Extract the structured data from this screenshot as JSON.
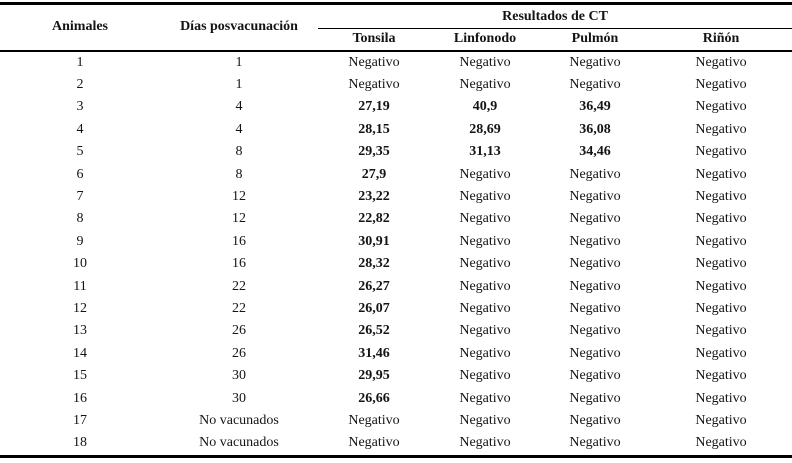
{
  "table": {
    "columns": {
      "animales": "Animales",
      "dias": "Días posvacunación",
      "group": "Resultados de CT",
      "subcols": [
        "Tonsila",
        "Linfonodo",
        "Pulmón",
        "Riñón"
      ]
    },
    "rows": [
      {
        "animal": "1",
        "dias": "1",
        "ct": [
          "Negativo",
          "Negativo",
          "Negativo",
          "Negativo"
        ]
      },
      {
        "animal": "2",
        "dias": "1",
        "ct": [
          "Negativo",
          "Negativo",
          "Negativo",
          "Negativo"
        ]
      },
      {
        "animal": "3",
        "dias": "4",
        "ct": [
          "27,19",
          "40,9",
          "36,49",
          "Negativo"
        ]
      },
      {
        "animal": "4",
        "dias": "4",
        "ct": [
          "28,15",
          "28,69",
          "36,08",
          "Negativo"
        ]
      },
      {
        "animal": "5",
        "dias": "8",
        "ct": [
          "29,35",
          "31,13",
          "34,46",
          "Negativo"
        ]
      },
      {
        "animal": "6",
        "dias": "8",
        "ct": [
          "27,9",
          "Negativo",
          "Negativo",
          "Negativo"
        ]
      },
      {
        "animal": "7",
        "dias": "12",
        "ct": [
          "23,22",
          "Negativo",
          "Negativo",
          "Negativo"
        ]
      },
      {
        "animal": "8",
        "dias": "12",
        "ct": [
          "22,82",
          "Negativo",
          "Negativo",
          "Negativo"
        ]
      },
      {
        "animal": "9",
        "dias": "16",
        "ct": [
          "30,91",
          "Negativo",
          "Negativo",
          "Negativo"
        ]
      },
      {
        "animal": "10",
        "dias": "16",
        "ct": [
          "28,32",
          "Negativo",
          "Negativo",
          "Negativo"
        ]
      },
      {
        "animal": "11",
        "dias": "22",
        "ct": [
          "26,27",
          "Negativo",
          "Negativo",
          "Negativo"
        ]
      },
      {
        "animal": "12",
        "dias": "22",
        "ct": [
          "26,07",
          "Negativo",
          "Negativo",
          "Negativo"
        ]
      },
      {
        "animal": "13",
        "dias": "26",
        "ct": [
          "26,52",
          "Negativo",
          "Negativo",
          "Negativo"
        ]
      },
      {
        "animal": "14",
        "dias": "26",
        "ct": [
          "31,46",
          "Negativo",
          "Negativo",
          "Negativo"
        ]
      },
      {
        "animal": "15",
        "dias": "30",
        "ct": [
          "29,95",
          "Negativo",
          "Negativo",
          "Negativo"
        ]
      },
      {
        "animal": "16",
        "dias": "30",
        "ct": [
          "26,66",
          "Negativo",
          "Negativo",
          "Negativo"
        ]
      },
      {
        "animal": "17",
        "dias": "No vacunados",
        "ct": [
          "Negativo",
          "Negativo",
          "Negativo",
          "Negativo"
        ]
      },
      {
        "animal": "18",
        "dias": "No vacunados",
        "ct": [
          "Negativo",
          "Negativo",
          "Negativo",
          "Negativo"
        ]
      }
    ]
  },
  "colors": {
    "text": "#141414",
    "border": "#000000",
    "background": "#ffffff"
  }
}
